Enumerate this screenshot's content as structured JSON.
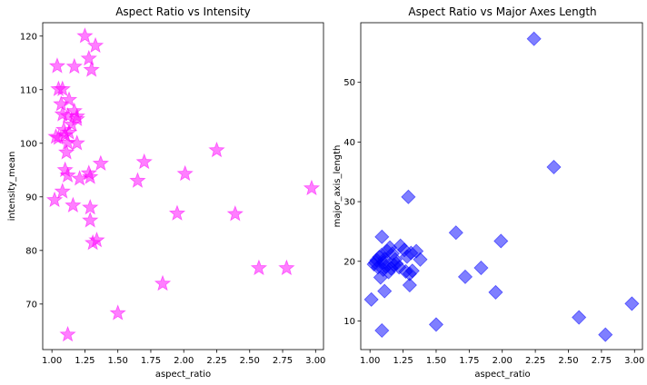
{
  "chart_data": [
    {
      "type": "scatter",
      "title": "Aspect Ratio vs Intensity",
      "xlabel": "aspect_ratio",
      "ylabel": "intensity_mean",
      "xlim": [
        0.93,
        3.06
      ],
      "ylim": [
        61.5,
        122.5
      ],
      "xticks": [
        "1.00",
        "1.25",
        "1.50",
        "1.75",
        "2.00",
        "2.25",
        "2.50",
        "2.75",
        "3.00"
      ],
      "yticks": [
        "70",
        "80",
        "90",
        "100",
        "110",
        "120"
      ],
      "marker": "star",
      "color": "#ff00ff",
      "grid": false,
      "x": [
        1.25,
        1.33,
        1.04,
        1.17,
        1.28,
        1.3,
        1.05,
        1.08,
        1.13,
        1.07,
        1.17,
        1.08,
        1.12,
        1.19,
        1.19,
        1.15,
        1.09,
        1.1,
        1.03,
        1.05,
        1.12,
        1.13,
        1.19,
        1.11,
        2.25,
        1.37,
        1.7,
        1.1,
        1.12,
        1.28,
        1.21,
        2.01,
        1.29,
        1.65,
        2.97,
        1.08,
        1.02,
        1.16,
        1.29,
        1.95,
        2.39,
        1.29,
        1.34,
        1.31,
        2.57,
        2.78,
        1.84,
        1.5,
        1.12
      ],
      "y": [
        120.0,
        118.2,
        114.4,
        114.3,
        115.8,
        113.7,
        110.1,
        110.1,
        108.1,
        107.3,
        106.0,
        105.4,
        105.1,
        105.0,
        104.5,
        103.5,
        102.5,
        101.5,
        101.2,
        101.0,
        100.1,
        102.0,
        100.0,
        98.3,
        98.7,
        96.2,
        96.5,
        95.0,
        94.0,
        94.4,
        93.4,
        94.3,
        93.7,
        93.0,
        91.6,
        91.0,
        89.4,
        88.4,
        88.0,
        86.9,
        86.8,
        85.6,
        81.9,
        81.4,
        76.7,
        76.7,
        73.8,
        68.3,
        64.3
      ]
    },
    {
      "type": "scatter",
      "title": "Aspect Ratio vs Major Axes Length",
      "xlabel": "aspect_ratio",
      "ylabel": "major_axis_length",
      "xlim": [
        0.93,
        3.06
      ],
      "ylim": [
        5.2,
        60.0
      ],
      "xticks": [
        "1.00",
        "1.25",
        "1.50",
        "1.75",
        "2.00",
        "2.25",
        "2.50",
        "2.75",
        "3.00"
      ],
      "yticks": [
        "10",
        "20",
        "30",
        "40",
        "50"
      ],
      "marker": "diamond",
      "color": "#0000ff",
      "grid": false,
      "x": [
        2.24,
        2.39,
        1.29,
        1.65,
        1.09,
        1.99,
        1.72,
        1.84,
        1.95,
        1.3,
        1.32,
        1.38,
        1.35,
        1.03,
        1.05,
        1.07,
        1.09,
        1.11,
        1.13,
        1.15,
        1.17,
        1.2,
        1.23,
        1.26,
        1.28,
        1.31,
        1.06,
        1.1,
        1.14,
        1.19,
        1.08,
        1.12,
        1.16,
        1.22,
        1.27,
        1.04,
        1.1,
        1.18,
        1.3,
        1.01,
        1.11,
        1.5,
        1.09,
        2.58,
        2.78,
        2.98
      ],
      "y": [
        57.3,
        35.8,
        30.8,
        24.8,
        24.1,
        23.4,
        17.4,
        18.9,
        14.8,
        16.0,
        18.4,
        20.3,
        21.7,
        19.5,
        20.2,
        20.7,
        21.1,
        20.4,
        21.7,
        22.3,
        21.3,
        19.6,
        22.6,
        21.9,
        20.8,
        21.4,
        19.0,
        19.8,
        18.2,
        20.3,
        17.3,
        19.1,
        18.8,
        19.0,
        18.3,
        19.8,
        18.6,
        19.4,
        17.9,
        13.6,
        15.0,
        9.4,
        8.4,
        10.6,
        7.7,
        12.9
      ]
    }
  ]
}
